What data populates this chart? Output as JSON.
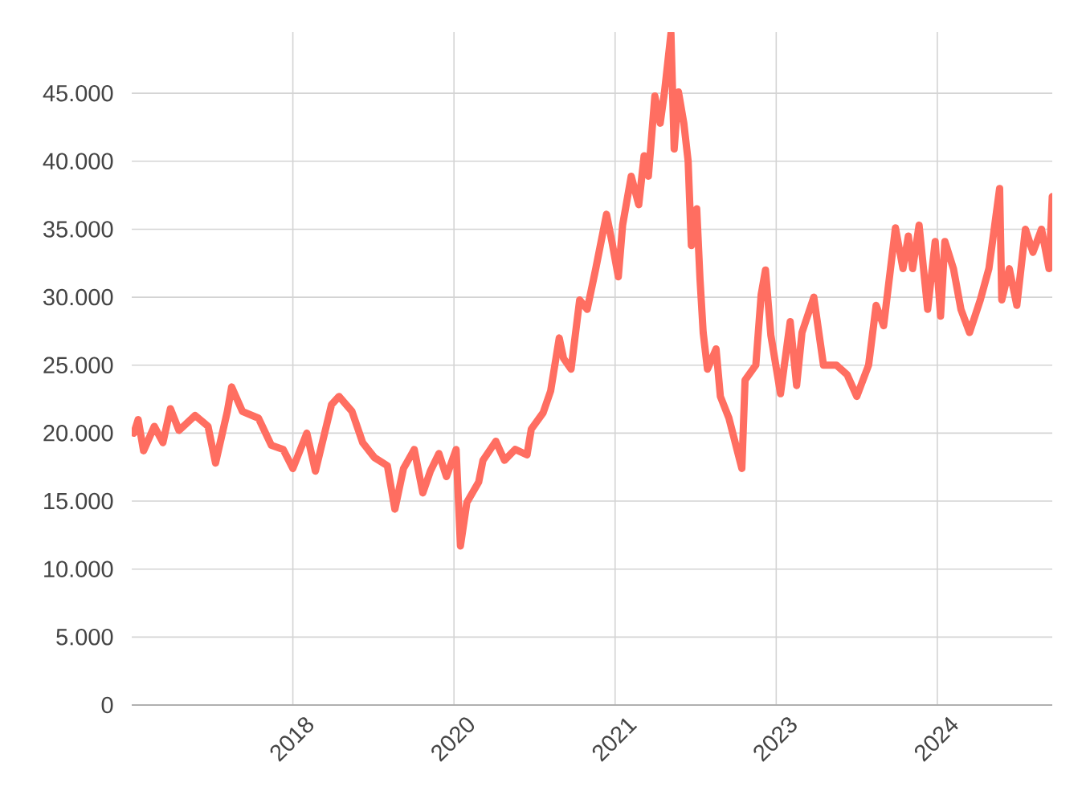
{
  "chart_data": {
    "type": "line",
    "color": "#ff6e61",
    "marker": "none",
    "line_style": "solid",
    "grid": true,
    "xlim": [
      2017.0,
      2025.57
    ],
    "ylim": [
      0,
      49500
    ],
    "xticks": [
      {
        "value": 2018.5,
        "label": "2018"
      },
      {
        "value": 2020.0,
        "label": "2020"
      },
      {
        "value": 2021.5,
        "label": "2021"
      },
      {
        "value": 2023.0,
        "label": "2023"
      },
      {
        "value": 2024.5,
        "label": "2024"
      }
    ],
    "yticks": [
      0,
      {
        "value": 5000,
        "label": "5.000"
      },
      {
        "value": 10000,
        "label": "10.000"
      },
      {
        "value": 15000,
        "label": "15.000"
      },
      {
        "value": 20000,
        "label": "20.000"
      },
      {
        "value": 25000,
        "label": "25.000"
      },
      {
        "value": 30000,
        "label": "30.000"
      },
      {
        "value": 35000,
        "label": "35.000"
      },
      {
        "value": 40000,
        "label": "40.000"
      },
      {
        "value": 45000,
        "label": "45.000"
      }
    ],
    "x": [
      2017.02,
      2017.06,
      2017.11,
      2017.21,
      2017.29,
      2017.36,
      2017.44,
      2017.59,
      2017.71,
      2017.78,
      2017.89,
      2017.93,
      2018.03,
      2018.18,
      2018.3,
      2018.41,
      2018.5,
      2018.63,
      2018.71,
      2018.86,
      2018.93,
      2019.05,
      2019.15,
      2019.26,
      2019.38,
      2019.45,
      2019.53,
      2019.63,
      2019.71,
      2019.78,
      2019.86,
      2019.93,
      2020.02,
      2020.06,
      2020.12,
      2020.23,
      2020.27,
      2020.39,
      2020.47,
      2020.57,
      2020.68,
      2020.72,
      2020.83,
      2020.9,
      2020.98,
      2021.02,
      2021.09,
      2021.17,
      2021.24,
      2021.32,
      2021.42,
      2021.47,
      2021.53,
      2021.57,
      2021.65,
      2021.72,
      2021.77,
      2021.81,
      2021.87,
      2021.92,
      2021.96,
      2022.02,
      2022.05,
      2022.09,
      2022.14,
      2022.18,
      2022.21,
      2022.26,
      2022.29,
      2022.32,
      2022.36,
      2022.44,
      2022.48,
      2022.56,
      2022.68,
      2022.71,
      2022.81,
      2022.86,
      2022.9,
      2022.95,
      2023.04,
      2023.13,
      2023.19,
      2023.24,
      2023.35,
      2023.44,
      2023.56,
      2023.66,
      2023.75,
      2023.86,
      2023.93,
      2024.0,
      2024.11,
      2024.18,
      2024.23,
      2024.27,
      2024.33,
      2024.41,
      2024.48,
      2024.53,
      2024.57,
      2024.65,
      2024.72,
      2024.8,
      2024.9,
      2024.98,
      2025.08,
      2025.1,
      2025.17,
      2025.24,
      2025.32,
      2025.39,
      2025.47,
      2025.54,
      2025.57
    ],
    "values": [
      20000,
      21000,
      18700,
      20500,
      19300,
      21800,
      20200,
      21300,
      20500,
      17800,
      21600,
      23400,
      21600,
      21100,
      19100,
      18800,
      17400,
      20000,
      17200,
      22100,
      22700,
      21600,
      19300,
      18200,
      17600,
      14400,
      17400,
      18800,
      15600,
      17200,
      18500,
      16800,
      18800,
      11700,
      14900,
      16400,
      18000,
      19400,
      18000,
      18800,
      18400,
      20300,
      21500,
      23100,
      27000,
      25500,
      24700,
      29800,
      29100,
      32100,
      36100,
      34100,
      31500,
      35300,
      38900,
      36800,
      40400,
      38900,
      44800,
      42800,
      45100,
      49400,
      40900,
      45100,
      42800,
      40000,
      33800,
      36500,
      31400,
      27400,
      24700,
      26200,
      22700,
      21100,
      17400,
      23900,
      25000,
      30200,
      32000,
      27200,
      22900,
      28200,
      23500,
      27400,
      30000,
      25000,
      25000,
      24300,
      22700,
      25000,
      29400,
      27900,
      35100,
      32100,
      34500,
      32100,
      35300,
      29100,
      34100,
      28600,
      34100,
      32100,
      29100,
      27400,
      29800,
      32100,
      38000,
      29800,
      32100,
      29400,
      35000,
      33300,
      35000,
      32100,
      37400
    ]
  }
}
